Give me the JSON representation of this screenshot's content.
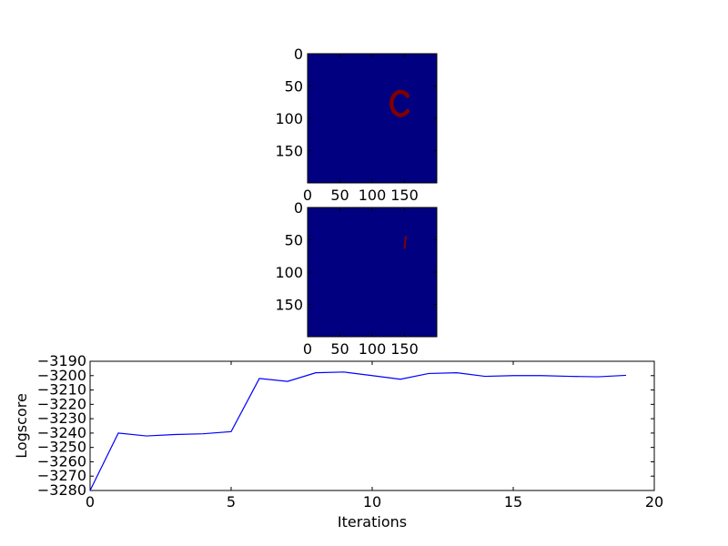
{
  "chart_data": [
    {
      "type": "heatmap",
      "panel": "top-image",
      "x_ticks": [
        "0",
        "50",
        "100",
        "150"
      ],
      "y_ticks": [
        "0",
        "50",
        "100",
        "150"
      ],
      "xlim": [
        0,
        200
      ],
      "ylim": [
        0,
        200
      ],
      "background_color": "#000080",
      "foreground_color": "#800000",
      "shape": {
        "kind": "letter-c",
        "center_x": 144,
        "center_y": 77,
        "radius_x": 14,
        "radius_y": 18
      }
    },
    {
      "type": "heatmap",
      "panel": "bottom-image",
      "x_ticks": [
        "0",
        "50",
        "100",
        "150"
      ],
      "y_ticks": [
        "0",
        "50",
        "100",
        "150"
      ],
      "xlim": [
        0,
        200
      ],
      "ylim": [
        0,
        200
      ],
      "background_color": "#000080",
      "foreground_color": "#800000",
      "shape": {
        "kind": "stroke",
        "x1": 152,
        "y1": 45,
        "x2": 150,
        "y2": 63
      }
    },
    {
      "type": "line",
      "xlabel": "Iterations",
      "ylabel": "Logscore",
      "xlim": [
        0,
        20
      ],
      "ylim": [
        -3280,
        -3190
      ],
      "x_ticks": [
        0,
        5,
        10,
        15,
        20
      ],
      "y_ticks": [
        -3190,
        -3200,
        -3210,
        -3220,
        -3230,
        -3240,
        -3250,
        -3260,
        -3270,
        -3280
      ],
      "line_color": "#0000ff",
      "series": [
        {
          "x": [
            0,
            1,
            2,
            3,
            4,
            5,
            6,
            7,
            8,
            9,
            10,
            11,
            12,
            13,
            14,
            15,
            16,
            17,
            18,
            19
          ],
          "values": [
            -3280,
            -3240,
            -3242,
            -3241,
            -3240.5,
            -3239,
            -3202,
            -3204,
            -3198,
            -3197.5,
            -3200,
            -3202.5,
            -3198.5,
            -3198,
            -3200.5,
            -3200,
            -3200,
            -3200.5,
            -3200.8,
            -3199.8
          ]
        }
      ]
    }
  ]
}
